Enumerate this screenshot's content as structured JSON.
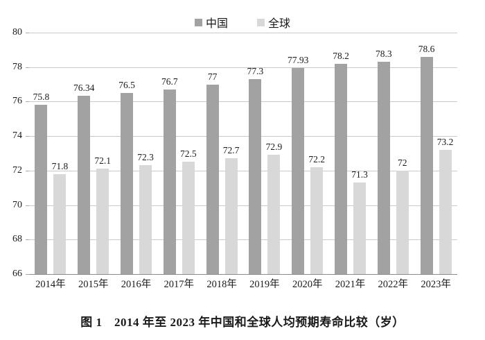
{
  "figure": {
    "caption": "图 1　2014 年至 2023 年中国和全球人均预期寿命比较（岁）"
  },
  "colors": {
    "china_bar": "#a2a2a2",
    "global_bar": "#d8d8d8",
    "gridline": "#c9c9c9",
    "axis_line": "#8a8a8a",
    "text": "#1a1a1a"
  },
  "chart_data": {
    "type": "bar",
    "title": "",
    "xlabel": "",
    "ylabel": "",
    "categories": [
      "2014年",
      "2015年",
      "2016年",
      "2017年",
      "2018年",
      "2019年",
      "2020年",
      "2021年",
      "2022年",
      "2023年"
    ],
    "series": [
      {
        "name": "中国",
        "color": "#a2a2a2",
        "values": [
          75.8,
          76.34,
          76.5,
          76.7,
          77,
          77.3,
          77.93,
          78.2,
          78.3,
          78.6
        ]
      },
      {
        "name": "全球",
        "color": "#d8d8d8",
        "values": [
          71.8,
          72.1,
          72.3,
          72.5,
          72.7,
          72.9,
          72.2,
          71.3,
          72,
          73.2
        ]
      }
    ],
    "ylim": [
      66,
      80
    ],
    "yticks": [
      66,
      68,
      70,
      72,
      74,
      76,
      78,
      80
    ],
    "grid": true,
    "legend_position": "top",
    "value_labels": true
  }
}
